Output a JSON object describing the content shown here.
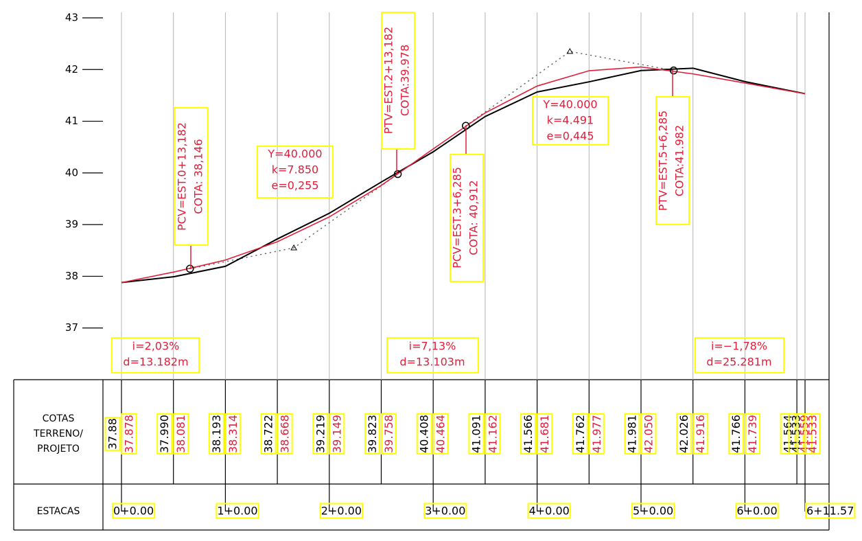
{
  "chart_data": {
    "type": "line",
    "x": [
      0,
      10,
      20,
      30,
      40,
      50,
      60,
      70,
      80,
      90,
      100,
      110,
      120,
      130,
      131.57
    ],
    "xlim": [
      0,
      131.57
    ],
    "ylim": [
      36,
      43
    ],
    "yticks": [
      37,
      38,
      39,
      40,
      41,
      42,
      43
    ],
    "series": [
      {
        "color": "#000000",
        "values": [
          37.88,
          37.99,
          38.193,
          38.722,
          39.219,
          39.823,
          40.408,
          41.091,
          41.566,
          41.762,
          41.981,
          42.026,
          41.766,
          41.564,
          41.533
        ],
        "value_labels": [
          "37.88",
          "37.990",
          "38.193",
          "38.722",
          "39.219",
          "39.823",
          "40.408",
          "41.091",
          "41.566",
          "41.762",
          "41.981",
          "42.026",
          "41.766",
          "41.564",
          "41.533"
        ]
      },
      {
        "color": "#e0203a",
        "values": [
          37.878,
          38.081,
          38.314,
          38.668,
          39.149,
          39.758,
          40.464,
          41.162,
          41.681,
          41.977,
          42.05,
          41.916,
          41.739,
          41.559,
          41.533
        ],
        "value_labels": [
          "37.878",
          "38.081",
          "38.314",
          "38.668",
          "39.149",
          "39.758",
          "40.464",
          "41.162",
          "41.681",
          "41.977",
          "42.050",
          "41.916",
          "41.739",
          "41.559",
          "41.533"
        ]
      }
    ],
    "curve_points": {
      "x": [
        13.182,
        53.182,
        66.285,
        106.285
      ],
      "y": [
        38.146,
        39.978,
        40.912,
        41.982
      ]
    },
    "piv_points": {
      "x": [
        33.18,
        86.3
      ],
      "y": [
        38.55,
        42.35
      ]
    },
    "table_labels": {
      "elevations": [
        "COTAS",
        "TERRENO/",
        "PROJETO"
      ],
      "stations": "ESTACAS"
    },
    "stations": {
      "x": [
        0,
        20,
        40,
        60,
        80,
        100,
        120,
        131.57
      ],
      "labels": [
        "0+0.00",
        "1+0.00",
        "2+0.00",
        "3+0.00",
        "4+0.00",
        "5+0.00",
        "6+0.00",
        "6+11.57"
      ]
    },
    "annotations": [
      {
        "lines": [
          "PCV=EST.0+13,182",
          "COTA:  38,146"
        ]
      },
      {
        "lines": [
          "PTV=EST.2+13,182",
          "COTA:39.978"
        ]
      },
      {
        "lines": [
          "PCV=EST.3+6,285",
          "COTA:  40,912"
        ]
      },
      {
        "lines": [
          "PTV=EST.5+6,285",
          "COTA:41.982"
        ]
      },
      {
        "lines": [
          "Y=40.000",
          "k=7.850",
          "e=0,255"
        ]
      },
      {
        "lines": [
          "Y=40.000",
          "k=4.491",
          "e=0,445"
        ]
      },
      {
        "lines": [
          "i=2,03%",
          "d=13.182m"
        ]
      },
      {
        "lines": [
          "i=7,13%",
          "d=13.103m"
        ]
      },
      {
        "lines": [
          "i=−1,78%",
          "d=25.281m"
        ]
      }
    ]
  }
}
